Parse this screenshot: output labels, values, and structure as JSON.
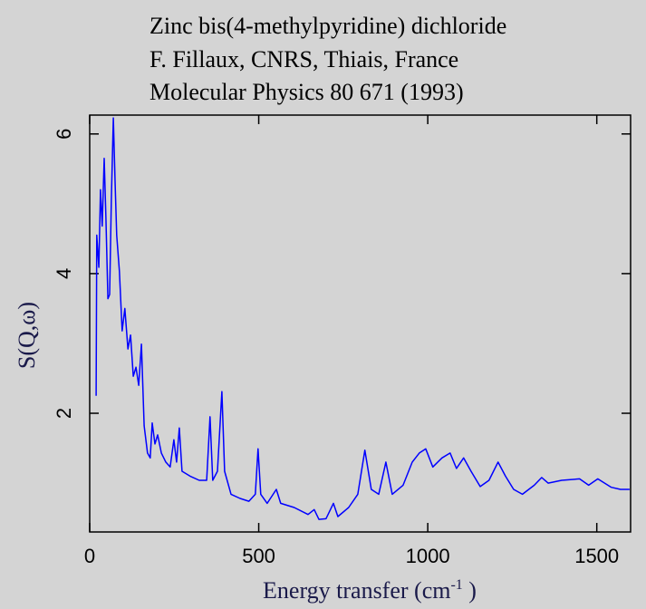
{
  "chart_data": {
    "type": "line",
    "title": [
      "Zinc bis(4-methylpyridine) dichloride",
      "F. Fillaux, CNRS, Thiais, France",
      "Molecular Physics 80 671 (1993)"
    ],
    "x_label": {
      "text": "Energy transfer (cm",
      "superscript": "-1",
      "suffix": " )"
    },
    "y_label": "S(Q,ω)",
    "color": "#0000ff",
    "xlim": [
      0,
      1600
    ],
    "ylim": [
      0.3,
      6.27
    ],
    "xticks": [
      0,
      500,
      1000,
      1500
    ],
    "yticks": [
      2,
      4,
      6
    ],
    "x": [
      19,
      21,
      27,
      32,
      37,
      43,
      48,
      54,
      59,
      64,
      70,
      75,
      80,
      88,
      96,
      104,
      113,
      121,
      129,
      137,
      145,
      153,
      161,
      171,
      179,
      185,
      193,
      201,
      212,
      225,
      238,
      249,
      257,
      265,
      273,
      297,
      324,
      346,
      356,
      364,
      378,
      391,
      399,
      418,
      445,
      471,
      490,
      498,
      506,
      525,
      552,
      565,
      605,
      646,
      664,
      678,
      699,
      721,
      734,
      766,
      793,
      814,
      833,
      855,
      876,
      895,
      927,
      954,
      975,
      994,
      1015,
      1042,
      1066,
      1085,
      1106,
      1128,
      1155,
      1181,
      1208,
      1230,
      1254,
      1280,
      1315,
      1337,
      1356,
      1396,
      1449,
      1476,
      1503,
      1543,
      1570,
      1597
    ],
    "values": [
      2.25,
      4.55,
      4.09,
      5.2,
      4.68,
      5.65,
      4.8,
      3.64,
      3.7,
      5.06,
      6.23,
      5.32,
      4.55,
      4.03,
      3.18,
      3.5,
      2.92,
      3.12,
      2.53,
      2.66,
      2.4,
      2.99,
      1.82,
      1.43,
      1.36,
      1.86,
      1.56,
      1.69,
      1.43,
      1.3,
      1.23,
      1.62,
      1.3,
      1.79,
      1.17,
      1.1,
      1.04,
      1.04,
      1.95,
      1.04,
      1.17,
      2.31,
      1.17,
      0.84,
      0.78,
      0.74,
      0.84,
      1.49,
      0.84,
      0.71,
      0.91,
      0.71,
      0.65,
      0.55,
      0.62,
      0.48,
      0.49,
      0.71,
      0.52,
      0.65,
      0.84,
      1.47,
      0.91,
      0.84,
      1.3,
      0.84,
      0.97,
      1.3,
      1.43,
      1.49,
      1.23,
      1.36,
      1.43,
      1.21,
      1.36,
      1.17,
      0.95,
      1.04,
      1.3,
      1.1,
      0.91,
      0.84,
      0.97,
      1.08,
      1.0,
      1.04,
      1.06,
      0.97,
      1.06,
      0.94,
      0.91,
      0.91
    ]
  }
}
